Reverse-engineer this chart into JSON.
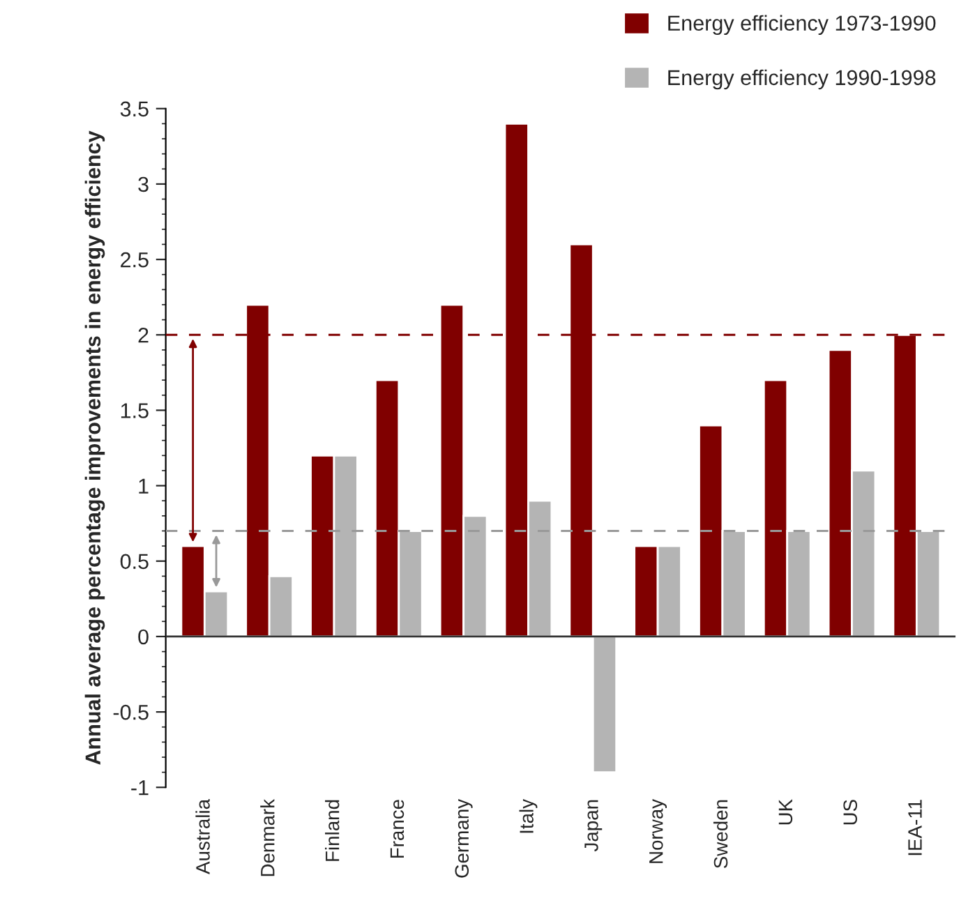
{
  "chart_data": {
    "type": "bar",
    "ylabel": "Annual average percentage improvements in energy efficiency",
    "categories": [
      "Australia",
      "Denmark",
      "Finland",
      "France",
      "Germany",
      "Italy",
      "Japan",
      "Norway",
      "Sweden",
      "UK",
      "US",
      "IEA-11"
    ],
    "series": [
      {
        "name": "Energy efficiency 1973-1990",
        "color": "#800000",
        "values": [
          0.6,
          2.2,
          1.2,
          1.7,
          2.2,
          3.4,
          2.6,
          0.6,
          1.4,
          1.7,
          1.9,
          2.0
        ]
      },
      {
        "name": "Energy efficiency 1990-1998",
        "color": "#b4b4b4",
        "values": [
          0.3,
          0.4,
          1.2,
          0.7,
          0.8,
          0.9,
          -0.9,
          0.6,
          0.7,
          0.7,
          1.1,
          0.7
        ]
      }
    ],
    "ylim": [
      -1,
      3.5
    ],
    "yticks": [
      -1,
      -0.5,
      0,
      0.5,
      1,
      1.5,
      2,
      2.5,
      3,
      3.5
    ],
    "ref_lines": [
      {
        "axis": "y",
        "value": 2,
        "color": "#800000",
        "line_style": "dashed"
      },
      {
        "axis": "y",
        "value": 0.7,
        "color": "#999999",
        "line_style": "dashed"
      },
      {
        "axis": "y",
        "value": 0,
        "color": "#333333",
        "line_style": "solid"
      }
    ],
    "grid": false,
    "legend": "top right"
  }
}
